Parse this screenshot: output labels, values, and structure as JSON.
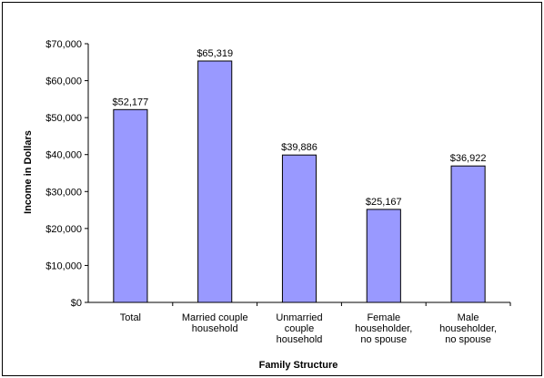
{
  "chart_data": {
    "type": "bar",
    "title": "",
    "xlabel": "Family Structure",
    "ylabel": "Income in Dollars",
    "ylim": [
      0,
      70000
    ],
    "ytick_step": 10000,
    "ytick_labels": [
      "$0",
      "$10,000",
      "$20,000",
      "$30,000",
      "$40,000",
      "$50,000",
      "$60,000",
      "$70,000"
    ],
    "categories": [
      [
        "Total"
      ],
      [
        "Married couple",
        "household"
      ],
      [
        "Unmarried",
        "couple",
        "household"
      ],
      [
        "Female",
        "householder,",
        "no spouse"
      ],
      [
        "Male",
        "householder,",
        "no spouse"
      ]
    ],
    "values": [
      52177,
      65319,
      39886,
      25167,
      36922
    ],
    "data_labels": [
      "$52,177",
      "$65,319",
      "$39,886",
      "$25,167",
      "$36,922"
    ],
    "bar_color": "#9999ff",
    "bar_edge_color": "#000000",
    "grid": false,
    "legend": "none"
  }
}
